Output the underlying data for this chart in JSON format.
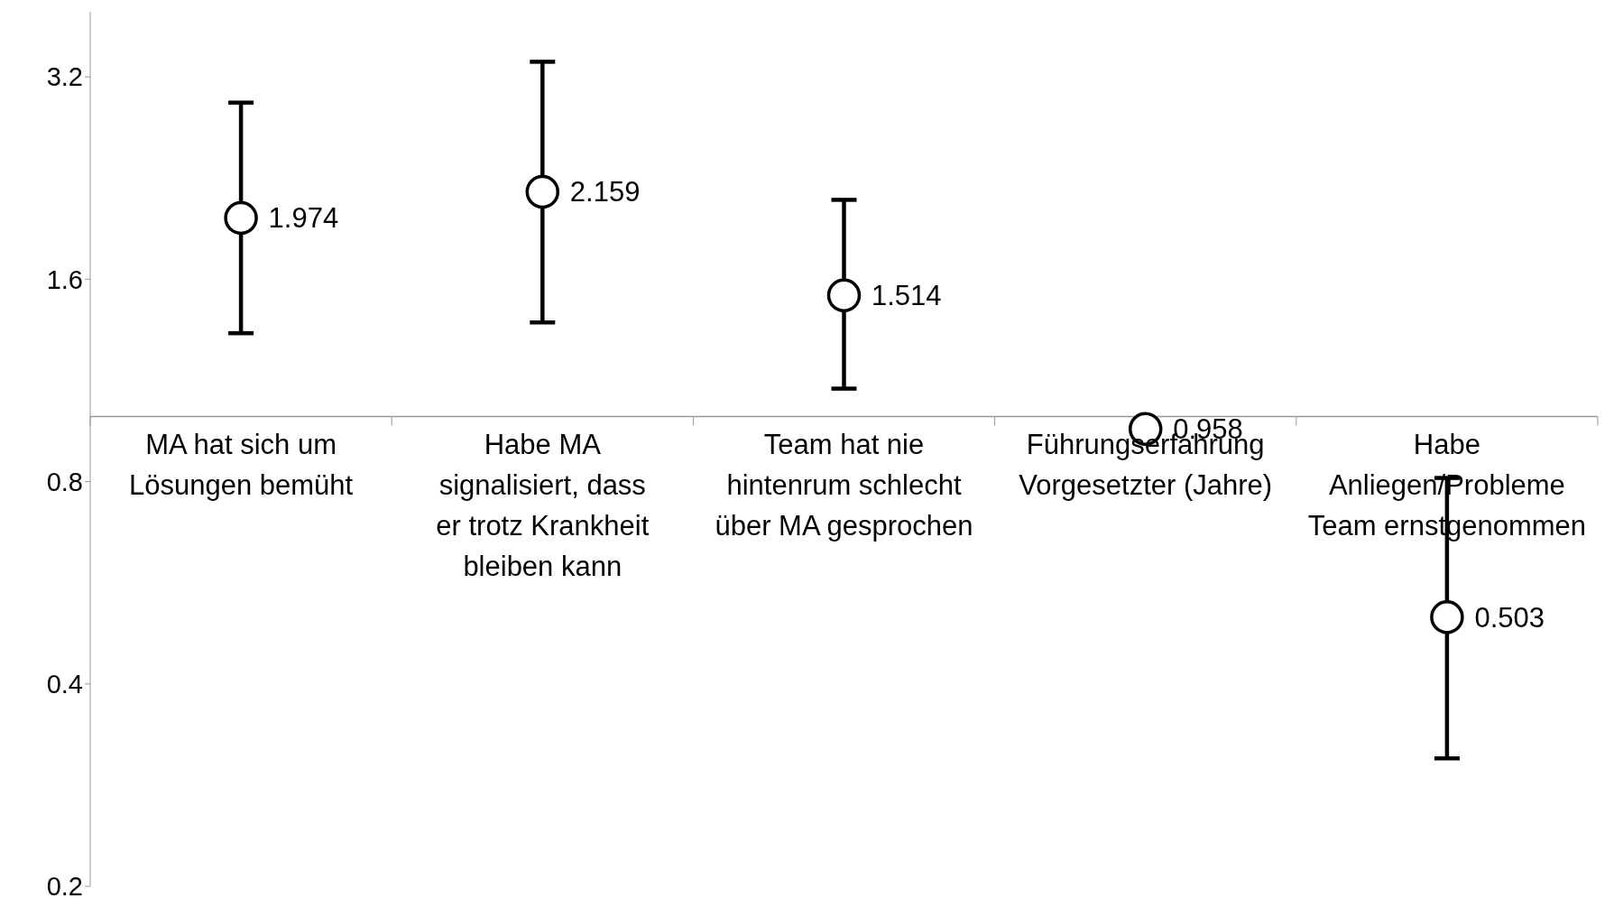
{
  "chart_data": {
    "type": "scatter",
    "categories": [
      "MA hat sich um Lösungen bemüht",
      "Habe MA signalisiert, dass er trotz Krankheit bleiben kann",
      "Team hat nie hintenrum schlecht über MA gesprochen",
      "Führungserfahrung Vorgesetzter (Jahre)",
      "Habe Anliegen/Probleme Team ernstgenommen"
    ],
    "series": [
      {
        "color": "#000000",
        "values": [
          1.974,
          2.159,
          1.514,
          0.958,
          0.503
        ],
        "errors": [
          [
            1.33,
            2.93
          ],
          [
            1.38,
            3.37
          ],
          [
            1.1,
            2.1
          ],
          null,
          [
            0.31,
            0.81
          ]
        ]
      }
    ],
    "log": "y",
    "ylim": [
      0.2,
      4
    ],
    "yticks": [
      0.2,
      0.4,
      0.8,
      1.6,
      3.2
    ],
    "marker": "circle",
    "data_labels": true
  }
}
